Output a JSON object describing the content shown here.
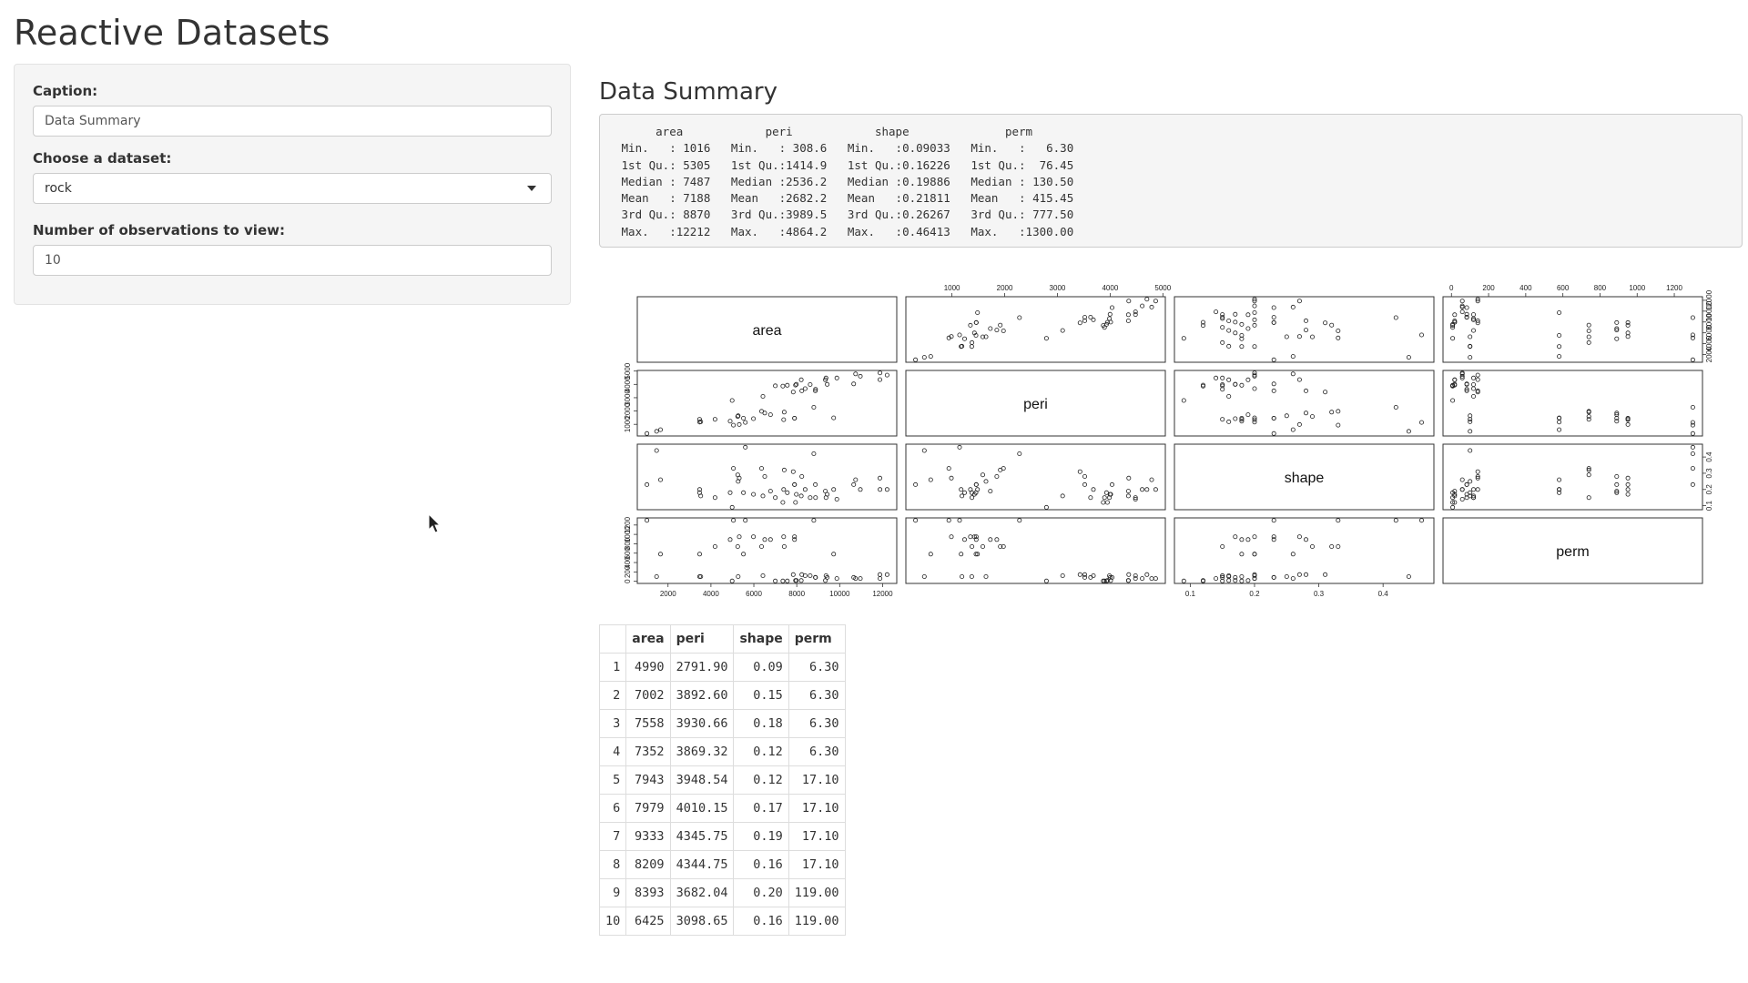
{
  "app": {
    "title": "Reactive Datasets"
  },
  "sidebar": {
    "caption_label": "Caption:",
    "caption_value": "Data Summary",
    "dataset_label": "Choose a dataset:",
    "dataset_value": "rock",
    "obs_label": "Number of observations to view:",
    "obs_value": "10"
  },
  "main": {
    "caption": "Data Summary",
    "summary_text": "      area            peri            shape              perm        \n Min.   : 1016   Min.   : 308.6   Min.   :0.09033   Min.   :   6.30  \n 1st Qu.: 5305   1st Qu.:1414.9   1st Qu.:0.16226   1st Qu.:  76.45  \n Median : 7487   Median :2536.2   Median :0.19886   Median : 130.50  \n Mean   : 7188   Mean   :2682.2   Mean   :0.21811   Mean   : 415.45  \n 3rd Qu.: 8870   3rd Qu.:3989.5   3rd Qu.:0.26267   3rd Qu.: 777.50  \n Max.   :12212   Max.   :4864.2   Max.   :0.46413   Max.   :1300.00  "
  },
  "chart_data": {
    "type": "scatter",
    "variables": [
      "area",
      "peri",
      "shape",
      "perm"
    ],
    "ranges": {
      "area": [
        1016,
        12212
      ],
      "peri": [
        308.6,
        4864.2
      ],
      "shape": [
        0.09033,
        0.46413
      ],
      "perm": [
        6.3,
        1300
      ]
    },
    "ticks": {
      "area": [
        2000,
        4000,
        6000,
        8000,
        10000,
        12000
      ],
      "peri": [
        1000,
        2000,
        3000,
        4000,
        5000
      ],
      "shape": [
        0.1,
        0.2,
        0.3,
        0.4
      ],
      "perm": [
        0,
        200,
        400,
        600,
        800,
        1000,
        1200
      ]
    },
    "points": [
      [
        4990,
        2791.9,
        0.09,
        6.3
      ],
      [
        7002,
        3892.6,
        0.15,
        6.3
      ],
      [
        7558,
        3930.66,
        0.18,
        6.3
      ],
      [
        7352,
        3869.32,
        0.12,
        6.3
      ],
      [
        7943,
        3948.54,
        0.12,
        17.1
      ],
      [
        7979,
        4010.15,
        0.17,
        17.1
      ],
      [
        9333,
        4345.75,
        0.19,
        17.1
      ],
      [
        8209,
        4344.75,
        0.16,
        17.1
      ],
      [
        8393,
        3682.04,
        0.2,
        119
      ],
      [
        6425,
        3098.65,
        0.16,
        119
      ],
      [
        9364,
        4480.05,
        0.15,
        119
      ],
      [
        8624,
        3986.24,
        0.15,
        119
      ],
      [
        10651,
        4036.54,
        0.23,
        82.4
      ],
      [
        8868,
        3518.04,
        0.23,
        82.4
      ],
      [
        9417,
        3999.37,
        0.17,
        82.4
      ],
      [
        8874,
        3629.07,
        0.15,
        82.4
      ],
      [
        10962,
        4608.66,
        0.2,
        58.6
      ],
      [
        10743,
        4787.62,
        0.26,
        58.6
      ],
      [
        11878,
        4864.22,
        0.2,
        58.6
      ],
      [
        9867,
        4479.41,
        0.14,
        58.6
      ],
      [
        7838,
        3428.74,
        0.31,
        142
      ],
      [
        11876,
        4353.14,
        0.27,
        142
      ],
      [
        12212,
        4697.65,
        0.2,
        142
      ],
      [
        8233,
        3518.44,
        0.28,
        142
      ],
      [
        6360,
        1977.39,
        0.33,
        740
      ],
      [
        4193,
        1379.35,
        0.15,
        740
      ],
      [
        7416,
        1916.24,
        0.32,
        740
      ],
      [
        5246,
        1585.42,
        0.29,
        740
      ],
      [
        6509,
        1851.21,
        0.28,
        890
      ],
      [
        4895,
        1239.66,
        0.18,
        890
      ],
      [
        6775,
        1728.14,
        0.19,
        890
      ],
      [
        7894,
        1461.06,
        0.23,
        890
      ],
      [
        5980,
        1426.76,
        0.17,
        950
      ],
      [
        5318,
        990.39,
        0.27,
        950
      ],
      [
        7392,
        1350.76,
        0.2,
        950
      ],
      [
        7894,
        1461.06,
        0.23,
        950
      ],
      [
        3469,
        1376.7,
        0.18,
        100
      ],
      [
        1468,
        476.322,
        0.44,
        100
      ],
      [
        3524,
        1189.46,
        0.16,
        100
      ],
      [
        5267,
        1644.96,
        0.25,
        100
      ],
      [
        5048,
        941.543,
        0.33,
        1300
      ],
      [
        1016,
        308.642,
        0.23,
        1300
      ],
      [
        5605,
        1145.69,
        0.46,
        1300
      ],
      [
        8793,
        2280.49,
        0.42,
        1300
      ],
      [
        3475,
        1174.11,
        0.2,
        580
      ],
      [
        1651,
        597.808,
        0.26,
        580
      ],
      [
        5514,
        1455.88,
        0.18,
        580
      ],
      [
        9718,
        1485.58,
        0.2,
        580
      ]
    ]
  },
  "table": {
    "headers": [
      "",
      "area",
      "peri",
      "shape",
      "perm"
    ],
    "rows": [
      [
        "1",
        "4990",
        "2791.90",
        "0.09",
        "6.30"
      ],
      [
        "2",
        "7002",
        "3892.60",
        "0.15",
        "6.30"
      ],
      [
        "3",
        "7558",
        "3930.66",
        "0.18",
        "6.30"
      ],
      [
        "4",
        "7352",
        "3869.32",
        "0.12",
        "6.30"
      ],
      [
        "5",
        "7943",
        "3948.54",
        "0.12",
        "17.10"
      ],
      [
        "6",
        "7979",
        "4010.15",
        "0.17",
        "17.10"
      ],
      [
        "7",
        "9333",
        "4345.75",
        "0.19",
        "17.10"
      ],
      [
        "8",
        "8209",
        "4344.75",
        "0.16",
        "17.10"
      ],
      [
        "9",
        "8393",
        "3682.04",
        "0.20",
        "119.00"
      ],
      [
        "10",
        "6425",
        "3098.65",
        "0.16",
        "119.00"
      ]
    ]
  }
}
